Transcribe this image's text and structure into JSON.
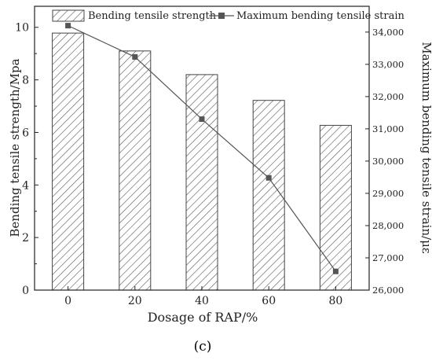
{
  "chart_data": {
    "type": "bar",
    "categories": [
      "0",
      "20",
      "40",
      "60",
      "80"
    ],
    "series": [
      {
        "name": "Bending tensile strength",
        "kind": "bar",
        "axis": "left",
        "values": [
          9.78,
          9.1,
          8.2,
          7.22,
          6.27
        ]
      },
      {
        "name": "Maximum bending tensile strain",
        "kind": "line",
        "axis": "right",
        "values": [
          34200,
          33230,
          31300,
          29480,
          26580
        ]
      }
    ],
    "xlabel": "Dosage of RAP/%",
    "ylabel": "Bending tensile strength/Mpa",
    "y2label": "Maximum bending tensile strain/με",
    "ylim": [
      0,
      10.8
    ],
    "y2lim": [
      26000,
      34800
    ],
    "yticks": [
      "0",
      "2",
      "4",
      "6",
      "8",
      "10"
    ],
    "y2ticks": [
      "26,000",
      "27,000",
      "28,000",
      "29,000",
      "30,000",
      "31,000",
      "32,000",
      "33,000",
      "34,000"
    ],
    "legend": "top",
    "grid": false,
    "bar_fill": "diagonal-hatch",
    "line_color": "#555555",
    "marker_color": "#555555"
  },
  "caption": "(c)"
}
